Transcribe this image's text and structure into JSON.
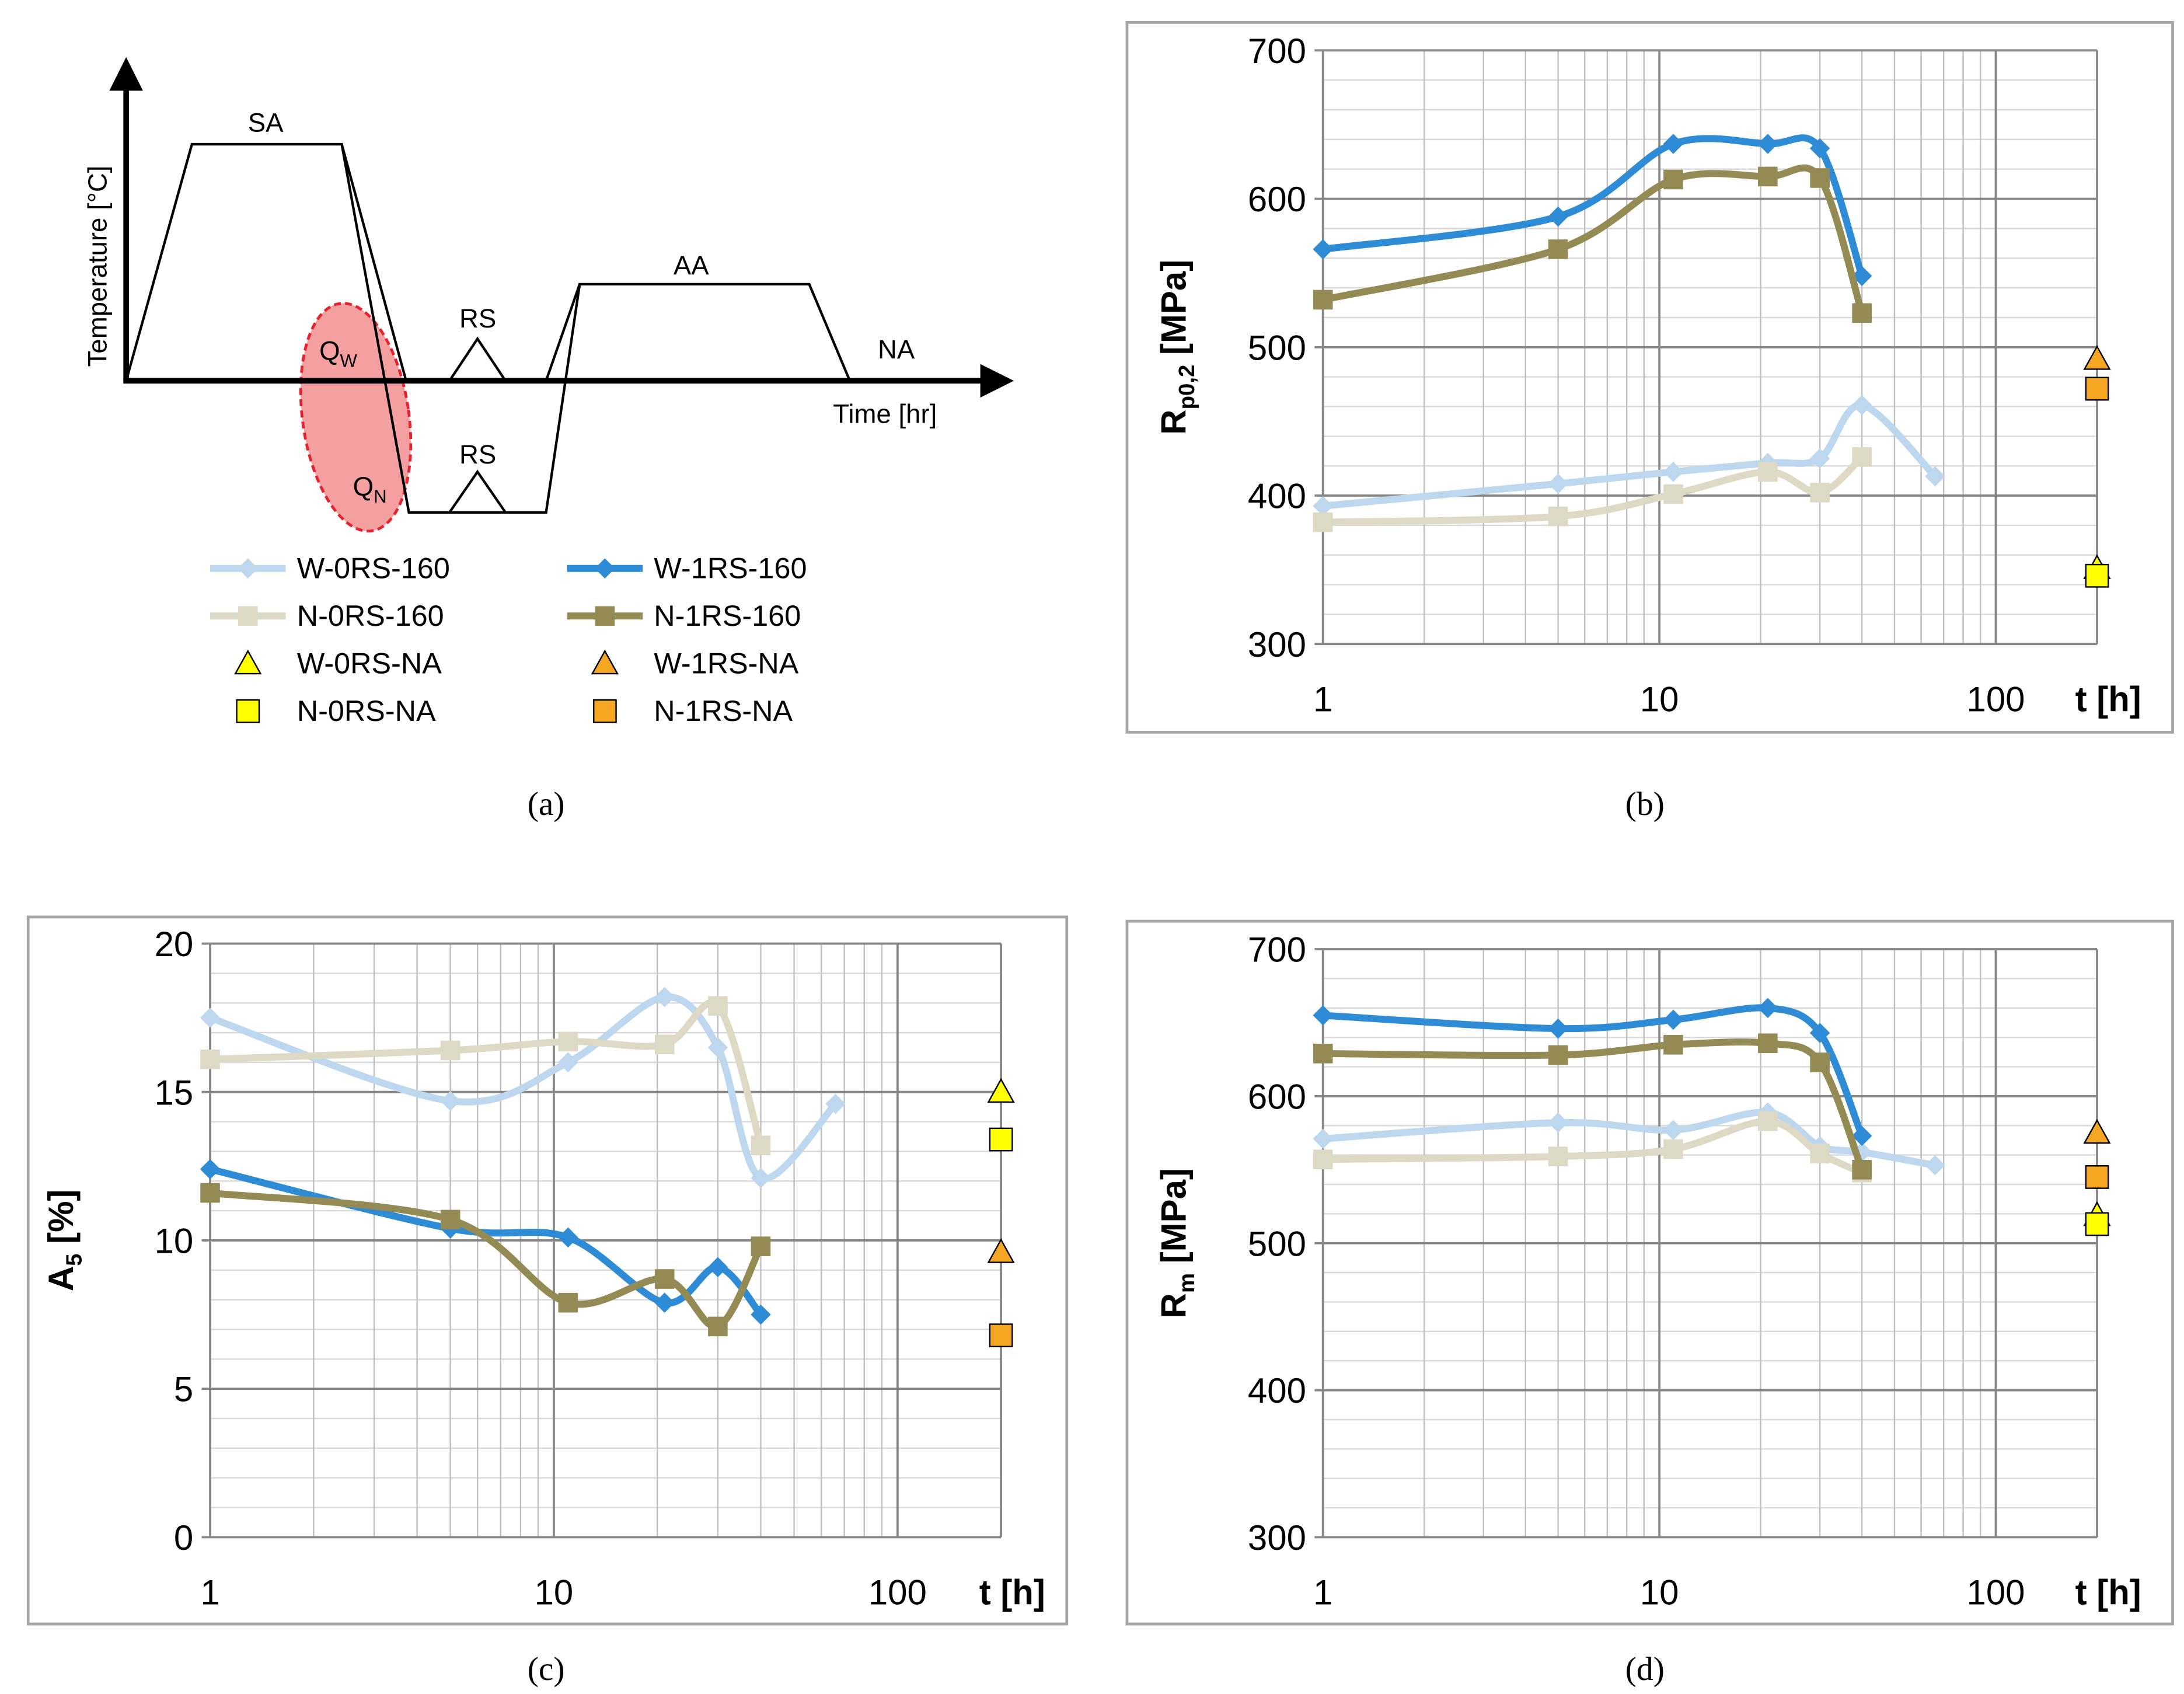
{
  "legend": [
    {
      "id": "w0",
      "label": "W-0RS-160"
    },
    {
      "id": "w1",
      "label": "W-1RS-160"
    },
    {
      "id": "n0",
      "label": "N-0RS-160"
    },
    {
      "id": "n1",
      "label": "N-1RS-160"
    },
    {
      "id": "w0na",
      "label": "W-0RS-NA"
    },
    {
      "id": "w1na",
      "label": "W-1RS-NA"
    },
    {
      "id": "n0na",
      "label": "N-0RS-NA"
    },
    {
      "id": "n1na",
      "label": "N-1RS-NA"
    }
  ],
  "styles": {
    "w0": {
      "color": "#bdd7ee",
      "marker": "diamond"
    },
    "w1": {
      "color": "#2e8bd6",
      "marker": "diamond"
    },
    "n0": {
      "color": "#ddd9c4",
      "marker": "square"
    },
    "n1": {
      "color": "#948a54",
      "marker": "square"
    },
    "w0na": {
      "color": "#ffff00",
      "marker": "triangle"
    },
    "w1na": {
      "color": "#f5a623",
      "marker": "triangle"
    },
    "n0na": {
      "color": "#ffff00",
      "marker": "square"
    },
    "n1na": {
      "color": "#f5a623",
      "marker": "square"
    }
  },
  "schematic": {
    "ylabel": "Temperature [°C]",
    "xlabel": "Time [hr]",
    "labels": {
      "sa": "SA",
      "aa": "AA",
      "na": "NA",
      "rs_top": "RS",
      "rs_bottom": "RS",
      "qw": "Q",
      "qw_sub": "W",
      "qn": "Q",
      "qn_sub": "N"
    },
    "ellipse_fill": "#f4a0a0",
    "ellipse_stroke": "#e8212e"
  },
  "captions": {
    "a": "(a)",
    "b": "(b)",
    "c": "(c)",
    "d": "(d)"
  },
  "chart_data": [
    {
      "id": "b",
      "type": "line",
      "xscale": "log",
      "xlim": [
        1,
        200
      ],
      "ylim": [
        300,
        700
      ],
      "yticks": [
        300,
        400,
        500,
        600,
        700
      ],
      "xticks": [
        1,
        10,
        100
      ],
      "ylabel": "R",
      "ylabel_sub": "p0,2",
      "ylabel_unit": " [MPa]",
      "xlabel": "t [h]",
      "series": [
        {
          "key": "w0",
          "name": "W-0RS-160",
          "x": [
            1,
            5,
            11,
            21,
            30,
            40,
            66
          ],
          "y": [
            393,
            408,
            416,
            422,
            425,
            461,
            413
          ]
        },
        {
          "key": "w1",
          "name": "W-1RS-160",
          "x": [
            1,
            5,
            11,
            21,
            30,
            40
          ],
          "y": [
            566,
            588,
            637,
            637,
            634,
            548
          ]
        },
        {
          "key": "n0",
          "name": "N-0RS-160",
          "x": [
            1,
            5,
            11,
            21,
            30,
            40
          ],
          "y": [
            382,
            386,
            401,
            416,
            402,
            426
          ]
        },
        {
          "key": "n1",
          "name": "N-1RS-160",
          "x": [
            1,
            5,
            11,
            21,
            30,
            40
          ],
          "y": [
            532,
            566,
            613,
            615,
            614,
            523
          ]
        }
      ],
      "points": [
        {
          "key": "w1na",
          "name": "W-1RS-NA",
          "x": 200,
          "y": 492
        },
        {
          "key": "n1na",
          "name": "N-1RS-NA",
          "x": 200,
          "y": 472
        },
        {
          "key": "w0na",
          "name": "W-0RS-NA",
          "x": 200,
          "y": 351
        },
        {
          "key": "n0na",
          "name": "N-0RS-NA",
          "x": 200,
          "y": 346
        }
      ]
    },
    {
      "id": "c",
      "type": "line",
      "xscale": "log",
      "xlim": [
        1,
        200
      ],
      "ylim": [
        0,
        20
      ],
      "yticks": [
        0,
        5,
        10,
        15,
        20
      ],
      "xticks": [
        1,
        10,
        100
      ],
      "ylabel": "A",
      "ylabel_sub": "5",
      "ylabel_unit": " [%]",
      "xlabel": "t [h]",
      "series": [
        {
          "key": "w0",
          "name": "W-0RS-160",
          "x": [
            1,
            5,
            11,
            21,
            30,
            40,
            66
          ],
          "y": [
            17.5,
            14.7,
            16.0,
            18.2,
            16.5,
            12.1,
            14.6
          ]
        },
        {
          "key": "w1",
          "name": "W-1RS-160",
          "x": [
            1,
            5,
            11,
            21,
            30,
            40
          ],
          "y": [
            12.4,
            10.4,
            10.1,
            7.9,
            9.1,
            7.5
          ]
        },
        {
          "key": "n0",
          "name": "N-0RS-160",
          "x": [
            1,
            5,
            11,
            21,
            30,
            40
          ],
          "y": [
            16.1,
            16.4,
            16.7,
            16.6,
            17.9,
            13.2
          ]
        },
        {
          "key": "n1",
          "name": "N-1RS-160",
          "x": [
            1,
            5,
            11,
            21,
            30,
            40
          ],
          "y": [
            11.6,
            10.7,
            7.9,
            8.7,
            7.1,
            9.8
          ]
        }
      ],
      "points": [
        {
          "key": "w0na",
          "name": "W-0RS-NA",
          "x": 200,
          "y": 15.0
        },
        {
          "key": "n0na",
          "name": "N-0RS-NA",
          "x": 200,
          "y": 13.4
        },
        {
          "key": "w1na",
          "name": "W-1RS-NA",
          "x": 200,
          "y": 9.6
        },
        {
          "key": "n1na",
          "name": "N-1RS-NA",
          "x": 200,
          "y": 6.8
        }
      ]
    },
    {
      "id": "d",
      "type": "line",
      "xscale": "log",
      "xlim": [
        1,
        200
      ],
      "ylim": [
        300,
        700
      ],
      "yticks": [
        300,
        400,
        500,
        600,
        700
      ],
      "xticks": [
        1,
        10,
        100
      ],
      "ylabel": "R",
      "ylabel_sub": "m",
      "ylabel_unit": " [MPa]",
      "xlabel": "t [h]",
      "series": [
        {
          "key": "w0",
          "name": "W-0RS-160",
          "x": [
            1,
            5,
            11,
            21,
            30,
            40,
            66
          ],
          "y": [
            571,
            582,
            577,
            589,
            566,
            562,
            553
          ]
        },
        {
          "key": "w1",
          "name": "W-1RS-160",
          "x": [
            1,
            5,
            11,
            21,
            30,
            40
          ],
          "y": [
            655,
            646,
            652,
            660,
            643,
            573
          ]
        },
        {
          "key": "n0",
          "name": "N-0RS-160",
          "x": [
            1,
            5,
            11,
            21,
            30,
            40
          ],
          "y": [
            557,
            559,
            564,
            583,
            561,
            548
          ]
        },
        {
          "key": "n1",
          "name": "N-1RS-160",
          "x": [
            1,
            5,
            11,
            21,
            30,
            40
          ],
          "y": [
            629,
            628,
            635,
            636,
            623,
            550
          ]
        }
      ],
      "points": [
        {
          "key": "w1na",
          "name": "W-1RS-NA",
          "x": 200,
          "y": 575
        },
        {
          "key": "n1na",
          "name": "N-1RS-NA",
          "x": 200,
          "y": 545
        },
        {
          "key": "w0na",
          "name": "W-0RS-NA",
          "x": 200,
          "y": 519
        },
        {
          "key": "n0na",
          "name": "N-0RS-NA",
          "x": 200,
          "y": 513
        }
      ]
    }
  ]
}
